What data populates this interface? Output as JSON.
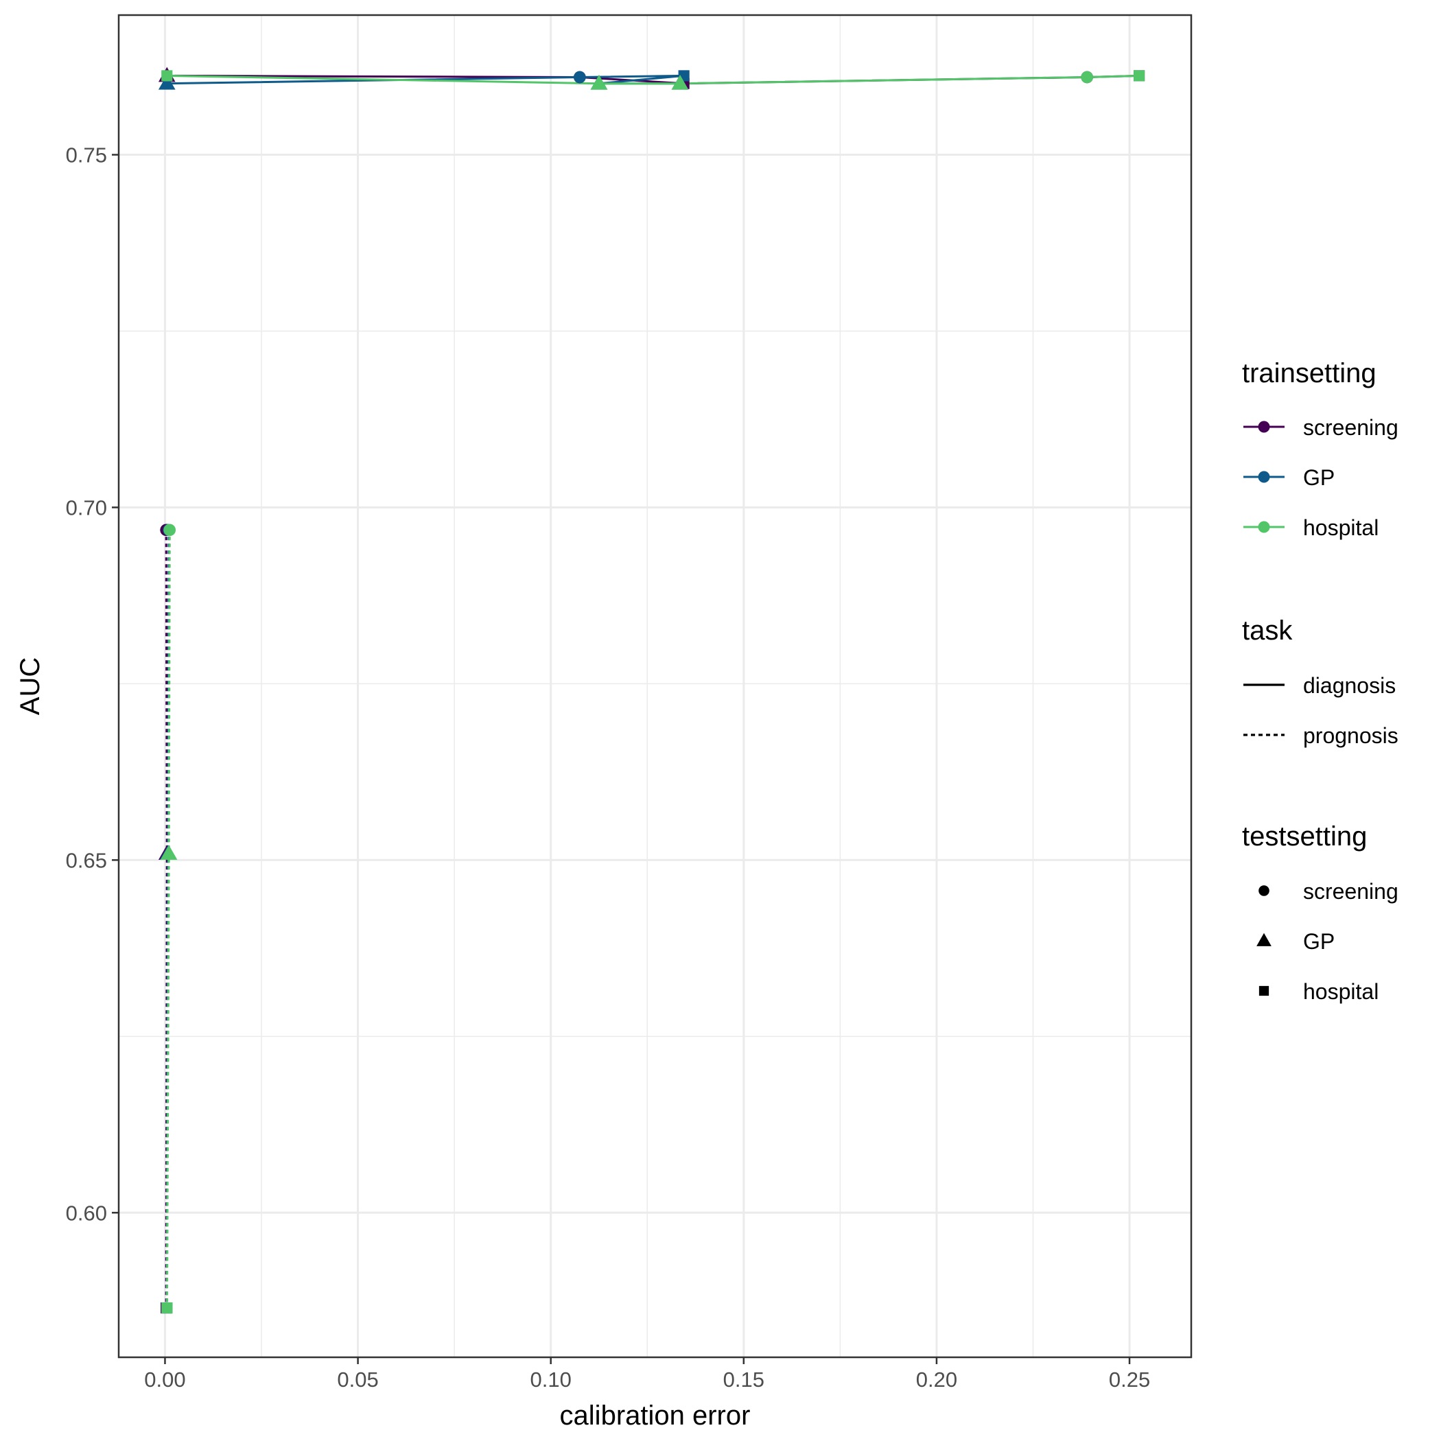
{
  "chart_data": {
    "type": "line",
    "xlabel": "calibration error",
    "ylabel": "AUC",
    "xlim": [
      -0.012,
      0.266
    ],
    "ylim": [
      0.5795,
      0.7698
    ],
    "x_ticks": [
      0.0,
      0.05,
      0.1,
      0.15,
      0.2,
      0.25
    ],
    "x_tick_labels": [
      "0.00",
      "0.05",
      "0.10",
      "0.15",
      "0.20",
      "0.25"
    ],
    "y_ticks": [
      0.6,
      0.65,
      0.7,
      0.75
    ],
    "y_tick_labels": [
      "0.60",
      "0.65",
      "0.70",
      "0.75"
    ],
    "grid": true,
    "legend_position": "right",
    "colors": {
      "screening": "#440154",
      "GP": "#0e5a8a",
      "hospital": "#52c569"
    },
    "series": [
      {
        "trainsetting": "screening",
        "task": "diagnosis",
        "points": [
          {
            "x": 0.0005,
            "y": 0.7612,
            "testsetting": "GP"
          },
          {
            "x": 0.1075,
            "y": 0.761,
            "testsetting": "screening"
          },
          {
            "x": 0.1345,
            "y": 0.7601,
            "testsetting": "hospital"
          },
          {
            "x": 0.239,
            "y": 0.761,
            "testsetting": "screening"
          },
          {
            "x": 0.2525,
            "y": 0.7612,
            "testsetting": "hospital"
          }
        ]
      },
      {
        "trainsetting": "GP",
        "task": "diagnosis",
        "points": [
          {
            "x": 0.0005,
            "y": 0.7601,
            "testsetting": "GP"
          },
          {
            "x": 0.1075,
            "y": 0.761,
            "testsetting": "screening"
          },
          {
            "x": 0.1345,
            "y": 0.7612,
            "testsetting": "hospital"
          },
          {
            "x": 0.1125,
            "y": 0.7601,
            "testsetting": "GP"
          },
          {
            "x": 0.1335,
            "y": 0.7601,
            "testsetting": "GP"
          }
        ]
      },
      {
        "trainsetting": "hospital",
        "task": "diagnosis",
        "points": [
          {
            "x": 0.0005,
            "y": 0.7612,
            "testsetting": "hospital"
          },
          {
            "x": 0.1125,
            "y": 0.7601,
            "testsetting": "GP"
          },
          {
            "x": 0.1335,
            "y": 0.7601,
            "testsetting": "GP"
          },
          {
            "x": 0.239,
            "y": 0.761,
            "testsetting": "screening"
          },
          {
            "x": 0.2525,
            "y": 0.7612,
            "testsetting": "hospital"
          }
        ]
      },
      {
        "trainsetting": "screening",
        "task": "prognosis",
        "points": [
          {
            "x": 0.0003,
            "y": 0.6968,
            "testsetting": "screening"
          },
          {
            "x": 0.0005,
            "y": 0.6509,
            "testsetting": "GP"
          },
          {
            "x": 0.0003,
            "y": 0.5865,
            "testsetting": "hospital"
          }
        ]
      },
      {
        "trainsetting": "GP",
        "task": "prognosis",
        "points": [
          {
            "x": 0.001,
            "y": 0.6968,
            "testsetting": "screening"
          },
          {
            "x": 0.0008,
            "y": 0.6509,
            "testsetting": "GP"
          },
          {
            "x": 0.0005,
            "y": 0.5865,
            "testsetting": "hospital"
          }
        ]
      },
      {
        "trainsetting": "hospital",
        "task": "prognosis",
        "points": [
          {
            "x": 0.0012,
            "y": 0.6968,
            "testsetting": "screening"
          },
          {
            "x": 0.001,
            "y": 0.6509,
            "testsetting": "GP"
          },
          {
            "x": 0.0005,
            "y": 0.5865,
            "testsetting": "hospital"
          }
        ]
      }
    ],
    "legend": {
      "trainsetting": {
        "title": "trainsetting",
        "items": [
          "screening",
          "GP",
          "hospital"
        ]
      },
      "task": {
        "title": "task",
        "items": [
          "diagnosis",
          "prognosis"
        ]
      },
      "testsetting": {
        "title": "testsetting",
        "items": [
          "screening",
          "GP",
          "hospital"
        ]
      }
    }
  }
}
